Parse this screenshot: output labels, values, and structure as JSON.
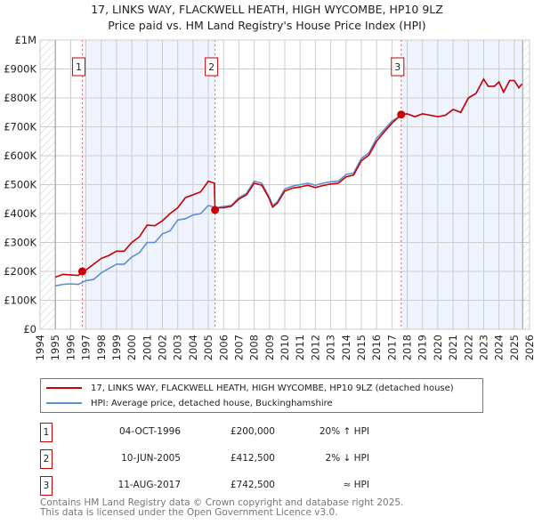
{
  "title_line1": "17, LINKS WAY, FLACKWELL HEATH, HIGH WYCOMBE, HP10 9LZ",
  "title_line2": "Price paid vs. HM Land Registry's House Price Index (HPI)",
  "colors": {
    "property": "#cc0000",
    "hpi": "#5b8fd4",
    "shade": "#eef3fd",
    "grid": "#cccccc"
  },
  "chart_data": {
    "type": "line",
    "xlim": [
      1994,
      2026
    ],
    "ylim": [
      0,
      1000000
    ],
    "x_ticks": [
      "1994",
      "1995",
      "1996",
      "1997",
      "1998",
      "1999",
      "2000",
      "2001",
      "2002",
      "2003",
      "2004",
      "2005",
      "2006",
      "2007",
      "2008",
      "2009",
      "2010",
      "2011",
      "2012",
      "2013",
      "2014",
      "2015",
      "2016",
      "2017",
      "2018",
      "2019",
      "2020",
      "2021",
      "2022",
      "2023",
      "2024",
      "2025",
      "2026"
    ],
    "y_ticks": [
      {
        "v": 0,
        "label": "£0"
      },
      {
        "v": 100000,
        "label": "£100K"
      },
      {
        "v": 200000,
        "label": "£200K"
      },
      {
        "v": 300000,
        "label": "£300K"
      },
      {
        "v": 400000,
        "label": "£400K"
      },
      {
        "v": 500000,
        "label": "£500K"
      },
      {
        "v": 600000,
        "label": "£600K"
      },
      {
        "v": 700000,
        "label": "£700K"
      },
      {
        "v": 800000,
        "label": "£800K"
      },
      {
        "v": 900000,
        "label": "£900K"
      },
      {
        "v": 1000000,
        "label": "£1M"
      }
    ],
    "grid": true,
    "hatched_ranges": [
      [
        1994,
        1995
      ],
      [
        2025.55,
        2026
      ]
    ],
    "shaded_ranges": [
      [
        1996.76,
        2005.44
      ],
      [
        2017.61,
        2025.55
      ]
    ],
    "series": [
      {
        "name": "17, LINKS WAY, FLACKWELL HEATH, HIGH WYCOMBE, HP10 9LZ (detached house)",
        "color": "#cc0000",
        "x": [
          1995,
          1995.5,
          1996,
          1996.5,
          1996.76,
          1997,
          1997.5,
          1998,
          1998.5,
          1999,
          1999.5,
          2000,
          2000.5,
          2001,
          2001.5,
          2002,
          2002.5,
          2003,
          2003.5,
          2004,
          2004.5,
          2005,
          2005.4,
          2005.44,
          2005.7,
          2006,
          2006.5,
          2007,
          2007.5,
          2008,
          2008.5,
          2009,
          2009.2,
          2009.5,
          2010,
          2010.5,
          2011,
          2011.5,
          2012,
          2012.5,
          2013,
          2013.5,
          2014,
          2014.5,
          2015,
          2015.5,
          2016,
          2016.5,
          2017,
          2017.61,
          2018,
          2018.5,
          2019,
          2019.5,
          2020,
          2020.5,
          2021,
          2021.5,
          2022,
          2022.5,
          2023,
          2023.3,
          2023.7,
          2024,
          2024.3,
          2024.7,
          2025,
          2025.3,
          2025.5
        ],
        "y": [
          180000,
          190000,
          188000,
          186000,
          200000,
          205000,
          225000,
          245000,
          255000,
          270000,
          270000,
          300000,
          320000,
          360000,
          358000,
          375000,
          400000,
          420000,
          455000,
          465000,
          475000,
          512000,
          505000,
          412500,
          420000,
          420000,
          425000,
          450000,
          465000,
          505000,
          498000,
          450000,
          422000,
          435000,
          478000,
          488000,
          492000,
          498000,
          490000,
          497000,
          502000,
          505000,
          527000,
          533000,
          582000,
          602000,
          650000,
          682000,
          712000,
          742500,
          745000,
          735000,
          745000,
          740000,
          735000,
          740000,
          760000,
          750000,
          800000,
          815000,
          865000,
          840000,
          840000,
          855000,
          820000,
          860000,
          860000,
          835000,
          848000
        ]
      },
      {
        "name": "HPI: Average price, detached house, Buckinghamshire",
        "color": "#5b8fd4",
        "x": [
          1995,
          1995.5,
          1996,
          1996.5,
          1997,
          1997.5,
          1998,
          1998.5,
          1999,
          1999.5,
          2000,
          2000.5,
          2001,
          2001.5,
          2002,
          2002.5,
          2003,
          2003.5,
          2004,
          2004.5,
          2005,
          2005.5,
          2006,
          2006.5,
          2007,
          2007.5,
          2008,
          2008.5,
          2009,
          2009.2,
          2009.5,
          2010,
          2010.5,
          2011,
          2011.5,
          2012,
          2012.5,
          2013,
          2013.5,
          2014,
          2014.5,
          2015,
          2015.5,
          2016,
          2016.5,
          2017,
          2017.5,
          2017.61,
          2018,
          2018.5,
          2019,
          2019.5,
          2020,
          2020.5,
          2021,
          2021.5,
          2022,
          2022.5,
          2023,
          2023.3,
          2023.7,
          2024,
          2024.3,
          2024.7,
          2025,
          2025.3,
          2025.5
        ],
        "y": [
          150000,
          155000,
          157000,
          155000,
          168000,
          172000,
          195000,
          210000,
          225000,
          225000,
          250000,
          265000,
          300000,
          300000,
          330000,
          340000,
          378000,
          382000,
          395000,
          400000,
          428000,
          420000,
          425000,
          428000,
          455000,
          470000,
          512000,
          505000,
          455000,
          428000,
          440000,
          485000,
          495000,
          500000,
          505000,
          498000,
          505000,
          510000,
          512000,
          535000,
          540000,
          590000,
          610000,
          660000,
          690000,
          720000,
          735000,
          742000,
          745000,
          735000,
          745000,
          740000,
          735000,
          740000,
          760000,
          750000,
          800000,
          815000,
          865000,
          840000,
          840000,
          855000,
          820000,
          860000,
          860000,
          835000,
          848000
        ]
      }
    ],
    "sales": [
      {
        "n": "1",
        "x": 1996.76,
        "y": 200000
      },
      {
        "n": "2",
        "x": 2005.44,
        "y": 412500
      },
      {
        "n": "3",
        "x": 2017.61,
        "y": 742500
      }
    ]
  },
  "legend": {
    "property": "17, LINKS WAY, FLACKWELL HEATH, HIGH WYCOMBE, HP10 9LZ (detached house)",
    "hpi": "HPI: Average price, detached house, Buckinghamshire"
  },
  "transactions": [
    {
      "n": "1",
      "date": "04-OCT-1996",
      "price": "£200,000",
      "rel": "20% ↑ HPI"
    },
    {
      "n": "2",
      "date": "10-JUN-2005",
      "price": "£412,500",
      "rel": "2% ↓ HPI"
    },
    {
      "n": "3",
      "date": "11-AUG-2017",
      "price": "£742,500",
      "rel": "≈ HPI"
    }
  ],
  "footer": {
    "line1": "Contains HM Land Registry data © Crown copyright and database right 2025.",
    "line2": "This data is licensed under the Open Government Licence v3.0."
  }
}
